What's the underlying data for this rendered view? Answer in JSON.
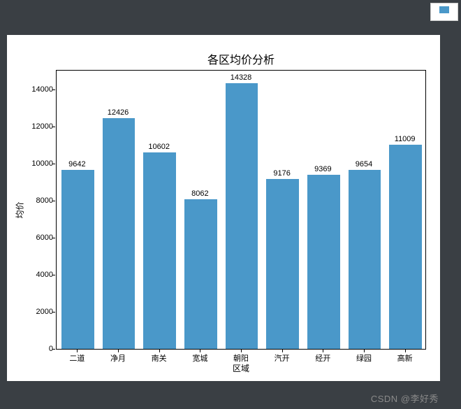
{
  "chart": {
    "type": "bar",
    "title": "各区均价分析",
    "title_fontsize": 16,
    "xlabel": "区域",
    "ylabel": "均价",
    "label_fontsize": 12,
    "categories": [
      "二道",
      "净月",
      "南关",
      "宽城",
      "朝阳",
      "汽开",
      "经开",
      "绿园",
      "高新"
    ],
    "values": [
      9642,
      12426,
      10602,
      8062,
      14328,
      9176,
      9369,
      9654,
      11009
    ],
    "bar_color": "#4a98c9",
    "ylim": [
      0,
      15000
    ],
    "ytick_step": 2000,
    "yticks": [
      0,
      2000,
      4000,
      6000,
      8000,
      10000,
      12000,
      14000
    ],
    "background_color": "#ffffff",
    "border_color": "#000000",
    "bar_width": 0.8,
    "tick_fontsize": 11,
    "value_label_fontsize": 11,
    "outer_background": "#3a3f44"
  },
  "watermark": "CSDN @李好秀",
  "legend_fragment": {
    "swatch_color": "#4a98c9"
  }
}
